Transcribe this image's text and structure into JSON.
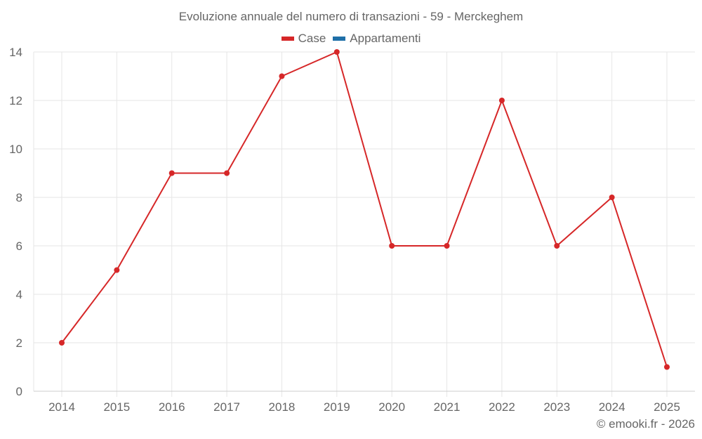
{
  "title": "Evoluzione annuale del numero di transazioni - 59 - Merckeghem",
  "legend": [
    {
      "label": "Case",
      "color": "#d62728"
    },
    {
      "label": "Appartamenti",
      "color": "#1f6fa8"
    }
  ],
  "footer": "© emooki.fr - 2026",
  "colors": {
    "grid": "#e6e6e6",
    "axis_text": "#666666",
    "series_case": "#d62728",
    "series_appartamenti": "#1f6fa8"
  },
  "chart_data": {
    "type": "line",
    "title": "Evoluzione annuale del numero di transazioni - 59 - Merckeghem",
    "xlabel": "",
    "ylabel": "",
    "categories": [
      "2014",
      "2015",
      "2016",
      "2017",
      "2018",
      "2019",
      "2020",
      "2021",
      "2022",
      "2023",
      "2024",
      "2025"
    ],
    "series": [
      {
        "name": "Case",
        "color": "#d62728",
        "values": [
          2,
          5,
          9,
          9,
          13,
          14,
          6,
          6,
          12,
          6,
          8,
          1
        ]
      },
      {
        "name": "Appartamenti",
        "color": "#1f6fa8",
        "values": []
      }
    ],
    "ylim": [
      0,
      14
    ],
    "yticks": [
      0,
      2,
      4,
      6,
      8,
      10,
      12,
      14
    ],
    "grid": true,
    "legend_position": "top"
  }
}
